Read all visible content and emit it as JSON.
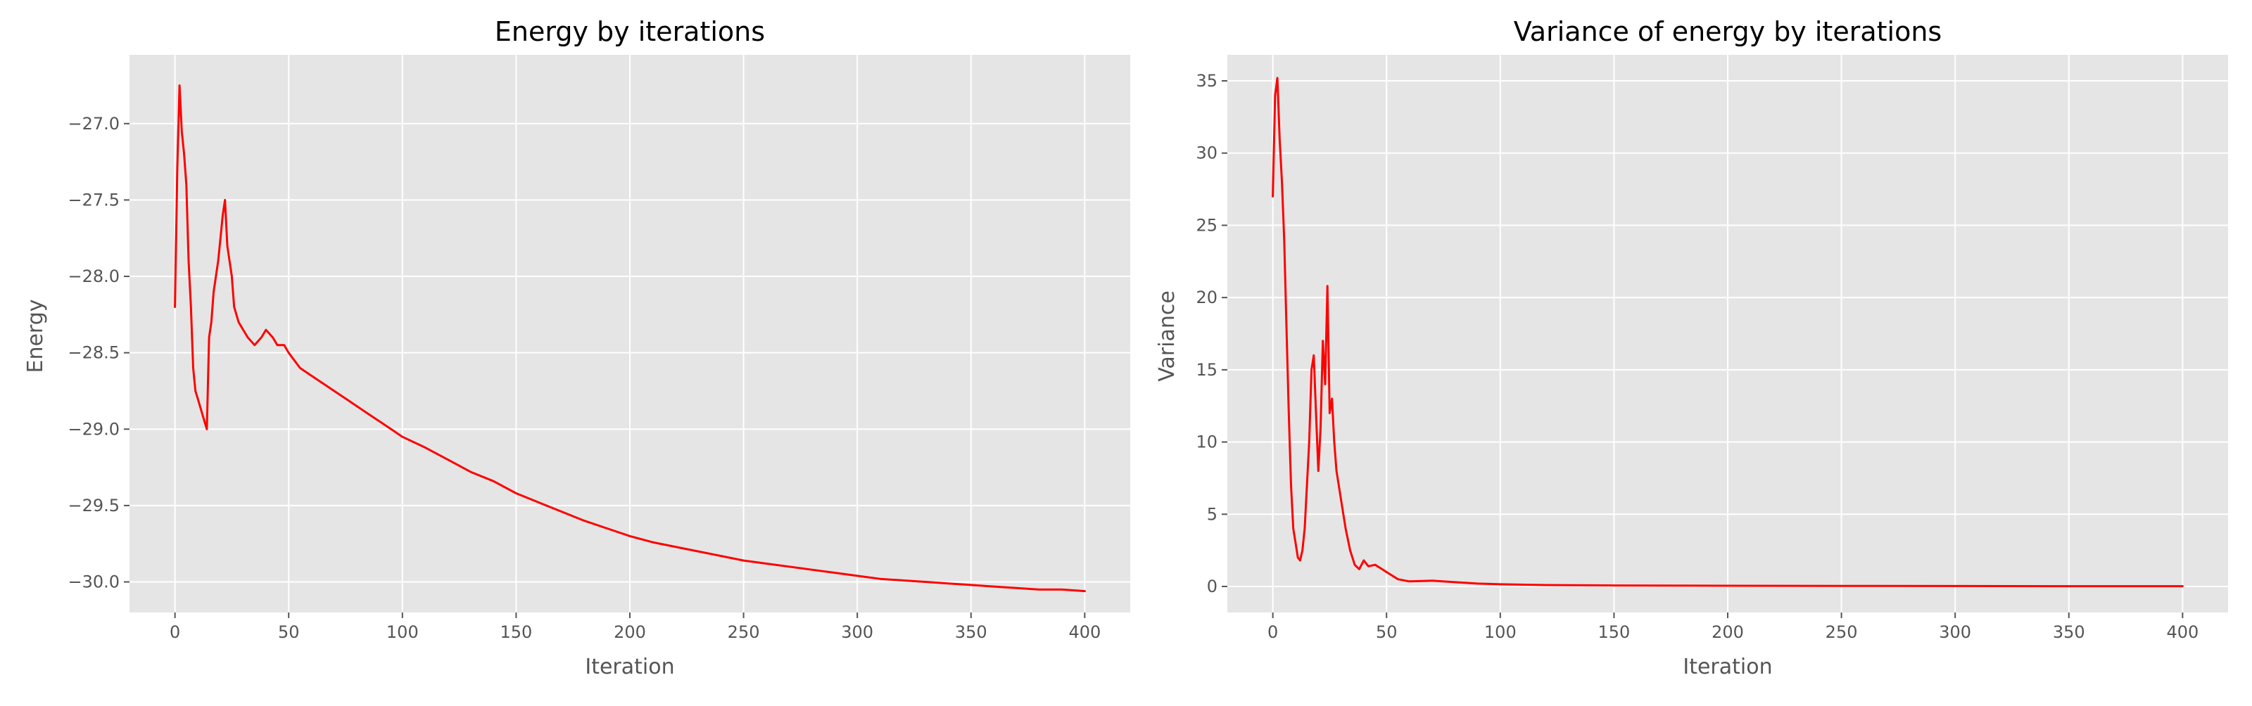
{
  "chart_data": [
    {
      "type": "line",
      "title": "Energy by iterations",
      "xlabel": "Iteration",
      "ylabel": "Energy",
      "xlim": [
        -20,
        420
      ],
      "ylim": [
        -30.2,
        -26.55
      ],
      "xticks": [
        0,
        50,
        100,
        150,
        200,
        250,
        300,
        350,
        400
      ],
      "yticks": [
        -30.0,
        -29.5,
        -29.0,
        -28.5,
        -28.0,
        -27.5,
        -27.0
      ],
      "ytick_decimals": 1,
      "grid": true,
      "legend": "none",
      "line_color": "#ff0000",
      "background_color": "#e5e5e5",
      "series": [
        {
          "x": [
            0,
            1,
            2,
            3,
            4,
            5,
            6,
            7,
            8,
            9,
            10,
            11,
            12,
            13,
            14,
            15,
            16,
            17,
            18,
            19,
            20,
            21,
            22,
            23,
            24,
            25,
            26,
            28,
            30,
            32,
            35,
            38,
            40,
            43,
            45,
            48,
            50,
            55,
            60,
            65,
            70,
            75,
            80,
            85,
            90,
            95,
            100,
            110,
            120,
            130,
            140,
            150,
            160,
            170,
            180,
            190,
            200,
            210,
            220,
            230,
            240,
            250,
            260,
            270,
            280,
            290,
            300,
            310,
            320,
            330,
            340,
            350,
            360,
            370,
            380,
            390,
            400
          ],
          "y": [
            -28.2,
            -27.3,
            -26.75,
            -27.05,
            -27.2,
            -27.4,
            -27.9,
            -28.2,
            -28.6,
            -28.75,
            -28.8,
            -28.85,
            -28.9,
            -28.95,
            -29.0,
            -28.4,
            -28.3,
            -28.1,
            -28.0,
            -27.9,
            -27.75,
            -27.6,
            -27.5,
            -27.8,
            -27.9,
            -28.0,
            -28.2,
            -28.3,
            -28.35,
            -28.4,
            -28.45,
            -28.4,
            -28.35,
            -28.4,
            -28.45,
            -28.45,
            -28.5,
            -28.6,
            -28.65,
            -28.7,
            -28.75,
            -28.8,
            -28.85,
            -28.9,
            -28.95,
            -29.0,
            -29.05,
            -29.12,
            -29.2,
            -29.28,
            -29.34,
            -29.42,
            -29.48,
            -29.54,
            -29.6,
            -29.65,
            -29.7,
            -29.74,
            -29.77,
            -29.8,
            -29.83,
            -29.86,
            -29.88,
            -29.9,
            -29.92,
            -29.94,
            -29.96,
            -29.98,
            -29.99,
            -30.0,
            -30.01,
            -30.02,
            -30.03,
            -30.04,
            -30.05,
            -30.05,
            -30.06
          ]
        }
      ]
    },
    {
      "type": "line",
      "title": "Variance of energy by iterations",
      "xlabel": "Iteration",
      "ylabel": "Variance",
      "xlim": [
        -20,
        420
      ],
      "ylim": [
        -1.8,
        36.8
      ],
      "xticks": [
        0,
        50,
        100,
        150,
        200,
        250,
        300,
        350,
        400
      ],
      "yticks": [
        0,
        5,
        10,
        15,
        20,
        25,
        30,
        35
      ],
      "ytick_decimals": 0,
      "grid": true,
      "legend": "none",
      "line_color": "#ff0000",
      "background_color": "#e5e5e5",
      "series": [
        {
          "x": [
            0,
            1,
            2,
            3,
            4,
            5,
            6,
            7,
            8,
            9,
            10,
            11,
            12,
            13,
            14,
            15,
            16,
            17,
            18,
            19,
            20,
            21,
            22,
            23,
            24,
            25,
            26,
            27,
            28,
            30,
            32,
            34,
            36,
            38,
            40,
            42,
            45,
            48,
            50,
            55,
            60,
            70,
            80,
            90,
            100,
            120,
            150,
            200,
            250,
            300,
            350,
            400
          ],
          "y": [
            27,
            34,
            35.2,
            31,
            28,
            24,
            18,
            12,
            7,
            4,
            3,
            2,
            1.8,
            2.5,
            4,
            7,
            10,
            15,
            16,
            12,
            8,
            11,
            17,
            14,
            20.8,
            12,
            13,
            10,
            8,
            6,
            4,
            2.5,
            1.5,
            1.2,
            1.8,
            1.4,
            1.5,
            1.2,
            1.0,
            0.5,
            0.35,
            0.4,
            0.3,
            0.2,
            0.15,
            0.1,
            0.07,
            0.05,
            0.04,
            0.03,
            0.02,
            0.02
          ]
        }
      ]
    }
  ]
}
